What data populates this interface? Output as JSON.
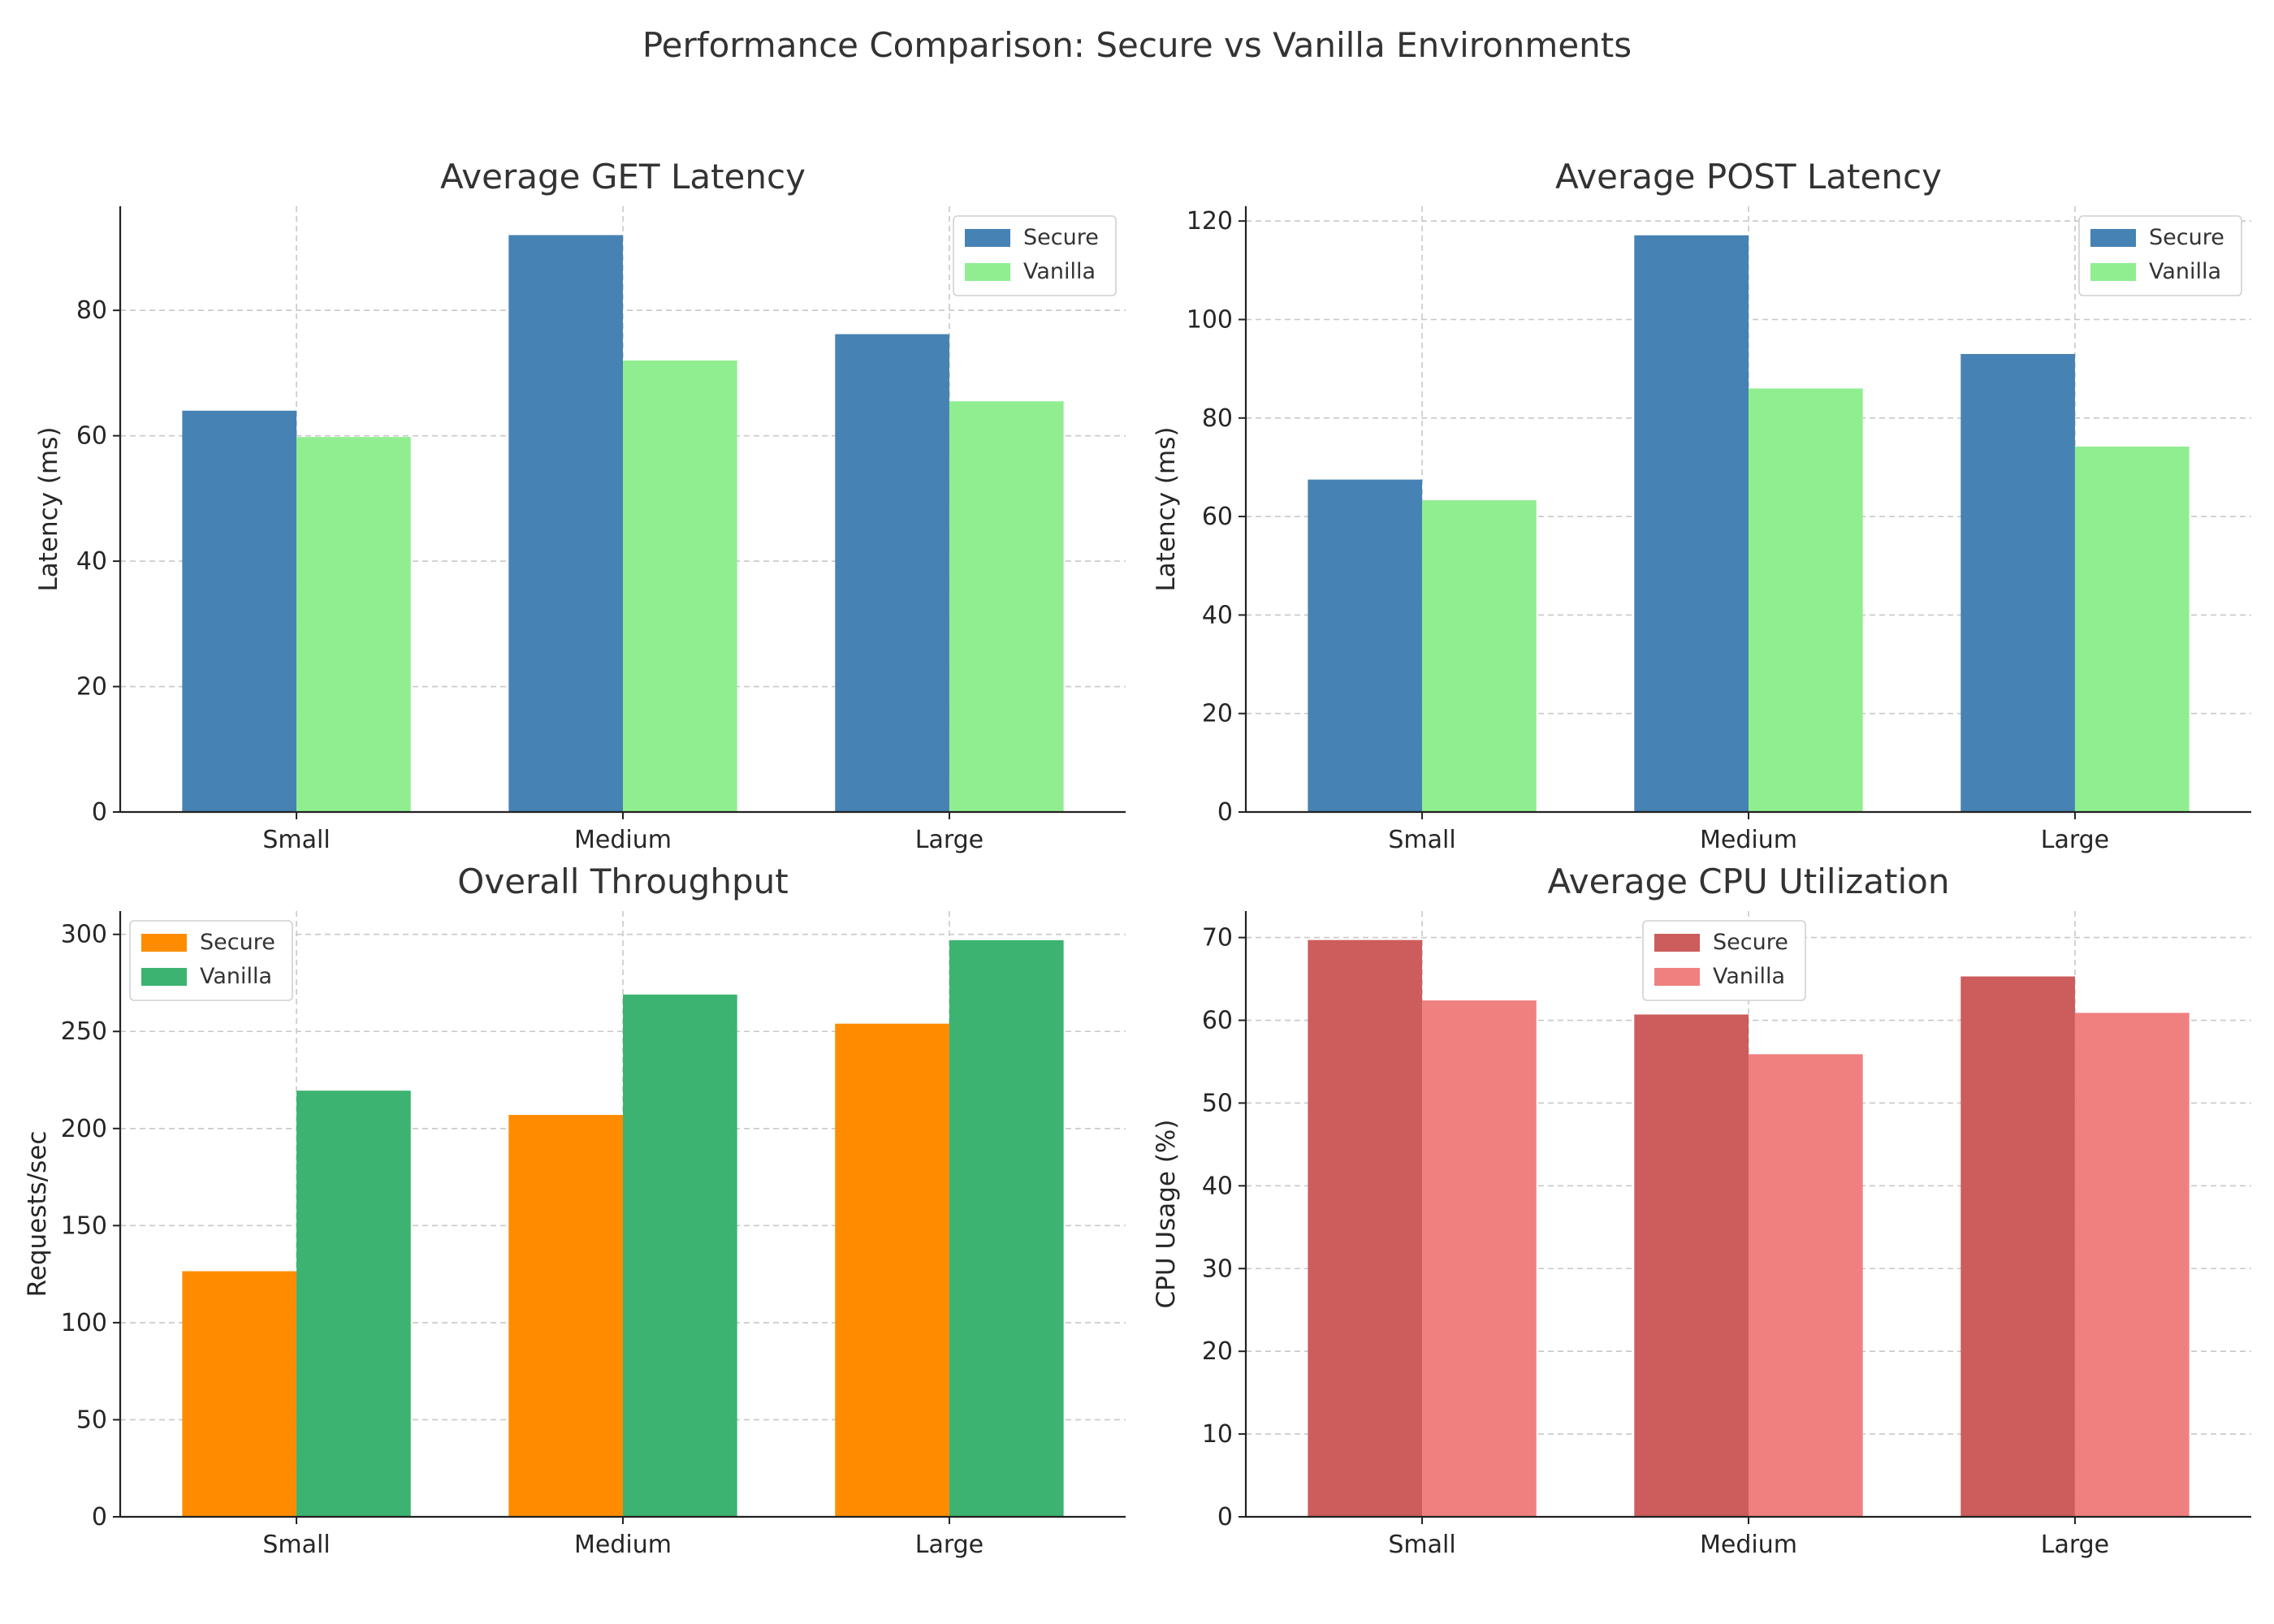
{
  "title": "Performance Comparison: Secure vs Vanilla Environments",
  "chart_data": [
    {
      "type": "bar",
      "title": "Average GET Latency",
      "xlabel": "",
      "ylabel": "Latency (ms)",
      "categories": [
        "Small",
        "Medium",
        "Large"
      ],
      "series": [
        {
          "name": "Secure",
          "values": [
            64,
            92,
            76.2
          ],
          "color": "#4682b4"
        },
        {
          "name": "Vanilla",
          "values": [
            59.8,
            72,
            65.5
          ],
          "color": "#90ee90"
        }
      ],
      "ylim": [
        0,
        96.6
      ],
      "yticks": [
        0,
        20,
        40,
        60,
        80
      ],
      "grid": true,
      "legend": "top-right"
    },
    {
      "type": "bar",
      "title": "Average POST Latency",
      "xlabel": "",
      "ylabel": "Latency (ms)",
      "categories": [
        "Small",
        "Medium",
        "Large"
      ],
      "series": [
        {
          "name": "Secure",
          "values": [
            67.5,
            117.1,
            93
          ],
          "color": "#4682b4"
        },
        {
          "name": "Vanilla",
          "values": [
            63.3,
            86,
            74.2
          ],
          "color": "#90ee90"
        }
      ],
      "ylim": [
        0,
        123
      ],
      "yticks": [
        0,
        20,
        40,
        60,
        80,
        100,
        120
      ],
      "grid": true,
      "legend": "top-right"
    },
    {
      "type": "bar",
      "title": "Overall Throughput",
      "xlabel": "",
      "ylabel": "Requests/sec",
      "categories": [
        "Small",
        "Medium",
        "Large"
      ],
      "series": [
        {
          "name": "Secure",
          "values": [
            126.5,
            207,
            254
          ],
          "color": "#ff8c00"
        },
        {
          "name": "Vanilla",
          "values": [
            219.5,
            269,
            297
          ],
          "color": "#3cb371"
        }
      ],
      "ylim": [
        0,
        312
      ],
      "yticks": [
        0,
        50,
        100,
        150,
        200,
        250,
        300
      ],
      "grid": true,
      "legend": "top-left"
    },
    {
      "type": "bar",
      "title": "Average CPU Utilization",
      "xlabel": "",
      "ylabel": "CPU Usage (%)",
      "categories": [
        "Small",
        "Medium",
        "Large"
      ],
      "series": [
        {
          "name": "Secure",
          "values": [
            69.7,
            60.7,
            65.3
          ],
          "color": "#cd5c5c"
        },
        {
          "name": "Vanilla",
          "values": [
            62.4,
            55.9,
            60.9
          ],
          "color": "#f08080"
        }
      ],
      "ylim": [
        0,
        73.2
      ],
      "yticks": [
        0,
        10,
        20,
        30,
        40,
        50,
        60,
        70
      ],
      "grid": true,
      "legend": "top-center"
    }
  ]
}
